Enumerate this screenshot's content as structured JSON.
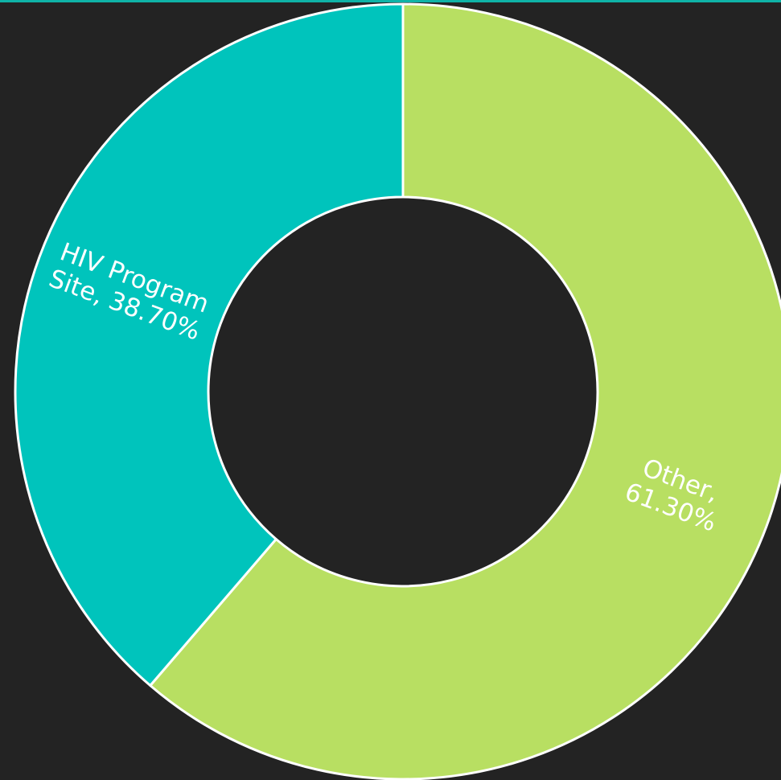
{
  "chart_data": {
    "type": "pie",
    "variant": "donut",
    "start_angle": "12 o'clock, clockwise",
    "slices": [
      {
        "label": "Other",
        "value": 61.3,
        "color": "#b8df62",
        "data_label": [
          "Other,",
          "61.30%"
        ]
      },
      {
        "label": "HIV Program Site",
        "value": 38.7,
        "color": "#00c4bc",
        "data_label": [
          "HIV Program",
          "Site, 38.70%"
        ]
      }
    ],
    "legend": "none",
    "colors": {
      "background": "#232323",
      "accent_rule": "#0fb3a7",
      "separator": "#ffffff"
    }
  }
}
